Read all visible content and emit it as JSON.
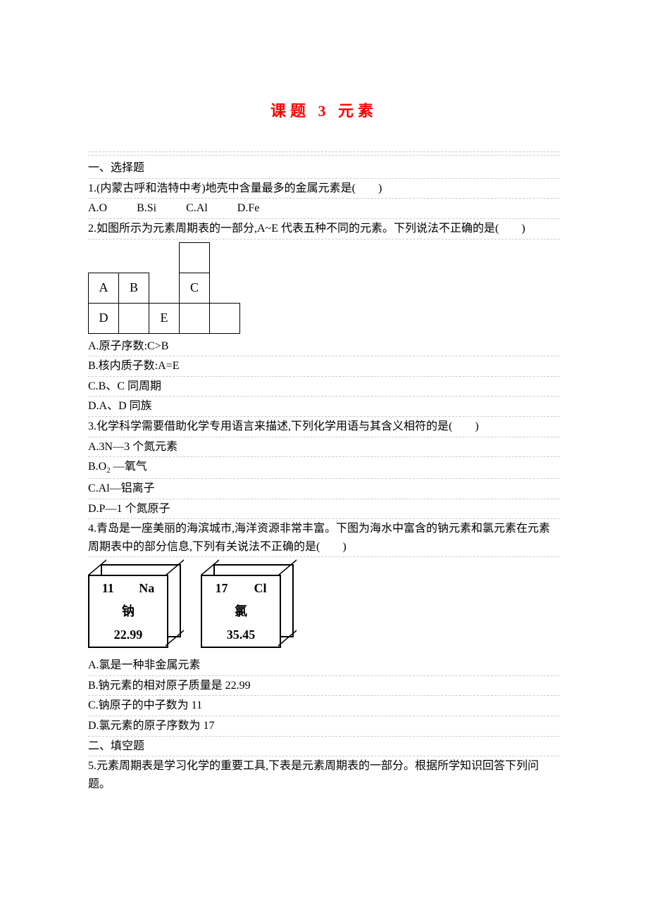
{
  "title": "课题 3 元素",
  "section1": "一、选择题",
  "q1": "1.(内蒙古呼和浩特中考)地壳中含量最多的金属元素是(　　)",
  "q1_opts": {
    "a": "A.O",
    "b": "B.Si",
    "c": "C.Al",
    "d": "D.Fe"
  },
  "q2": "2.如图所示为元素周期表的一部分,A~E 代表五种不同的元素。下列说法不正确的是(　　)",
  "table1": {
    "rows": [
      [
        "",
        "",
        "",
        "",
        "",
        ""
      ],
      [
        "A",
        "B",
        "",
        "C",
        "",
        ""
      ],
      [
        "D",
        "",
        "E",
        "",
        "",
        ""
      ]
    ]
  },
  "q2_opts": {
    "a": "A.原子序数:C>B",
    "b": "B.核内质子数:A=E",
    "c": "C.B、C 同周期",
    "d": "D.A、D 同族"
  },
  "q3": "3.化学科学需要借助化学专用语言来描述,下列化学用语与其含义相符的是(　　)",
  "q3_opts": {
    "a": "A.3N—3 个氮元素",
    "b_pre": "B.O",
    "b_sub": "2",
    "b_post": " —氧气",
    "c": "C.Al—铝离子",
    "d": "D.P—1 个氮原子"
  },
  "q4": "4.青岛是一座美丽的海滨城市,海洋资源非常丰富。下图为海水中富含的钠元素和氯元素在元素周期表中的部分信息,下列有关说法不正确的是(　　)",
  "elements": {
    "na": {
      "num": "11",
      "sym": "Na",
      "name": "钠",
      "mass": "22.99"
    },
    "cl": {
      "num": "17",
      "sym": "Cl",
      "name": "氯",
      "mass": "35.45"
    }
  },
  "q4_opts": {
    "a": "A.氯是一种非金属元素",
    "b": "B.钠元素的相对原子质量是 22.99",
    "c": "C.钠原子的中子数为 11",
    "d": "D.氯元素的原子序数为 17"
  },
  "section2": "二、填空题",
  "q5": "5.元素周期表是学习化学的重要工具,下表是元素周期表的一部分。根据所学知识回答下列问题。"
}
